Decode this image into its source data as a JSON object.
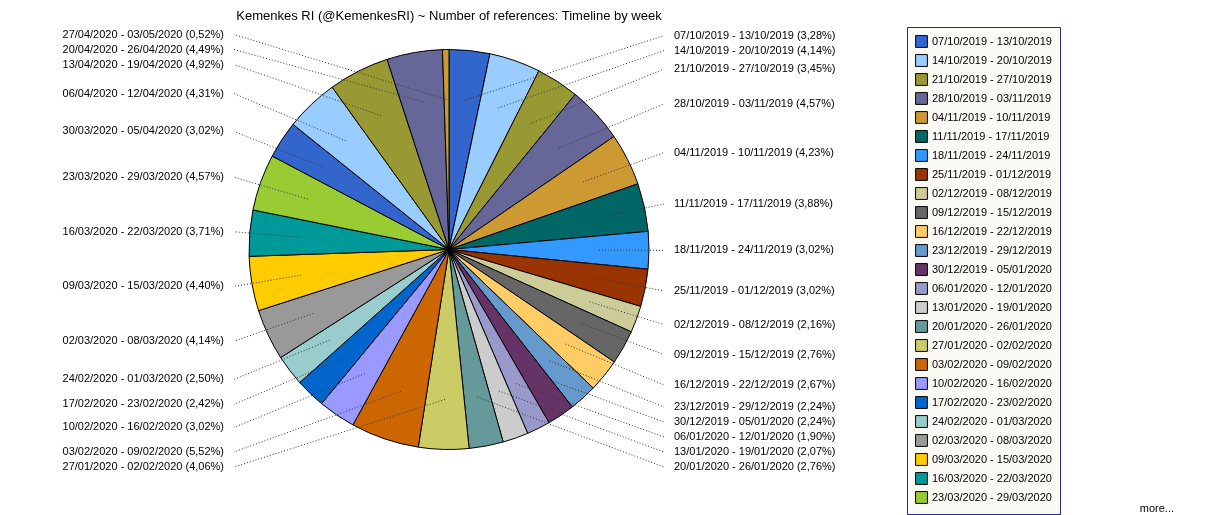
{
  "chart_data": {
    "type": "pie",
    "title": "Kemenkes RI (@KemenkesRI) ~ Number of references: Timeline by week",
    "categories": [
      "07/10/2019 - 13/10/2019",
      "14/10/2019 - 20/10/2019",
      "21/10/2019 - 27/10/2019",
      "28/10/2019 - 03/11/2019",
      "04/11/2019 - 10/11/2019",
      "11/11/2019 - 17/11/2019",
      "18/11/2019 - 24/11/2019",
      "25/11/2019 - 01/12/2019",
      "02/12/2019 - 08/12/2019",
      "09/12/2019 - 15/12/2019",
      "16/12/2019 - 22/12/2019",
      "23/12/2019 - 29/12/2019",
      "30/12/2019 - 05/01/2020",
      "06/01/2020 - 12/01/2020",
      "13/01/2020 - 19/01/2020",
      "20/01/2020 - 26/01/2020",
      "27/01/2020 - 02/02/2020",
      "03/02/2020 - 09/02/2020",
      "10/02/2020 - 16/02/2020",
      "17/02/2020 - 23/02/2020",
      "24/02/2020 - 01/03/2020",
      "02/03/2020 - 08/03/2020",
      "09/03/2020 - 15/03/2020",
      "16/03/2020 - 22/03/2020",
      "23/03/2020 - 29/03/2020",
      "30/03/2020 - 05/04/2020",
      "06/04/2020 - 12/04/2020",
      "13/04/2020 - 19/04/2020",
      "20/04/2020 - 26/04/2020",
      "27/04/2020 - 03/05/2020"
    ],
    "values": [
      3.28,
      4.14,
      3.45,
      4.57,
      4.23,
      3.88,
      3.02,
      3.02,
      2.16,
      2.76,
      2.67,
      2.24,
      2.24,
      1.9,
      2.07,
      2.76,
      4.06,
      5.52,
      3.02,
      2.42,
      2.5,
      4.14,
      4.4,
      3.71,
      4.57,
      3.02,
      4.31,
      4.92,
      4.49,
      0.52
    ],
    "value_labels": [
      "(3,28%)",
      "(4,14%)",
      "(3,45%)",
      "(4,57%)",
      "(4,23%)",
      "(3,88%)",
      "(3,02%)",
      "(3,02%)",
      "(2,16%)",
      "(2,76%)",
      "(2,67%)",
      "(2,24%)",
      "(2,24%)",
      "(1,90%)",
      "(2,07%)",
      "(2,76%)",
      "(4,06%)",
      "(5,52%)",
      "(3,02%)",
      "(2,42%)",
      "(2,50%)",
      "(4,14%)",
      "(4,40%)",
      "(3,71%)",
      "(4,57%)",
      "(3,02%)",
      "(4,31%)",
      "(4,92%)",
      "(4,49%)",
      "(0,52%)"
    ],
    "colors": [
      "#3366cc",
      "#99ccff",
      "#999933",
      "#666699",
      "#cc9933",
      "#006666",
      "#3399ff",
      "#993300",
      "#cccc99",
      "#666666",
      "#ffcc66",
      "#6699cc",
      "#663366",
      "#9999cc",
      "#cccccc",
      "#669999",
      "#cccc66",
      "#cc6600",
      "#9999ff",
      "#0066cc",
      "#99cccc",
      "#999999",
      "#ffcc00",
      "#009999",
      "#99cc33",
      "#3366cc",
      "#99ccff",
      "#999933",
      "#666699",
      "#cc9933"
    ],
    "legend": "right",
    "annotations": [
      "more..."
    ]
  }
}
